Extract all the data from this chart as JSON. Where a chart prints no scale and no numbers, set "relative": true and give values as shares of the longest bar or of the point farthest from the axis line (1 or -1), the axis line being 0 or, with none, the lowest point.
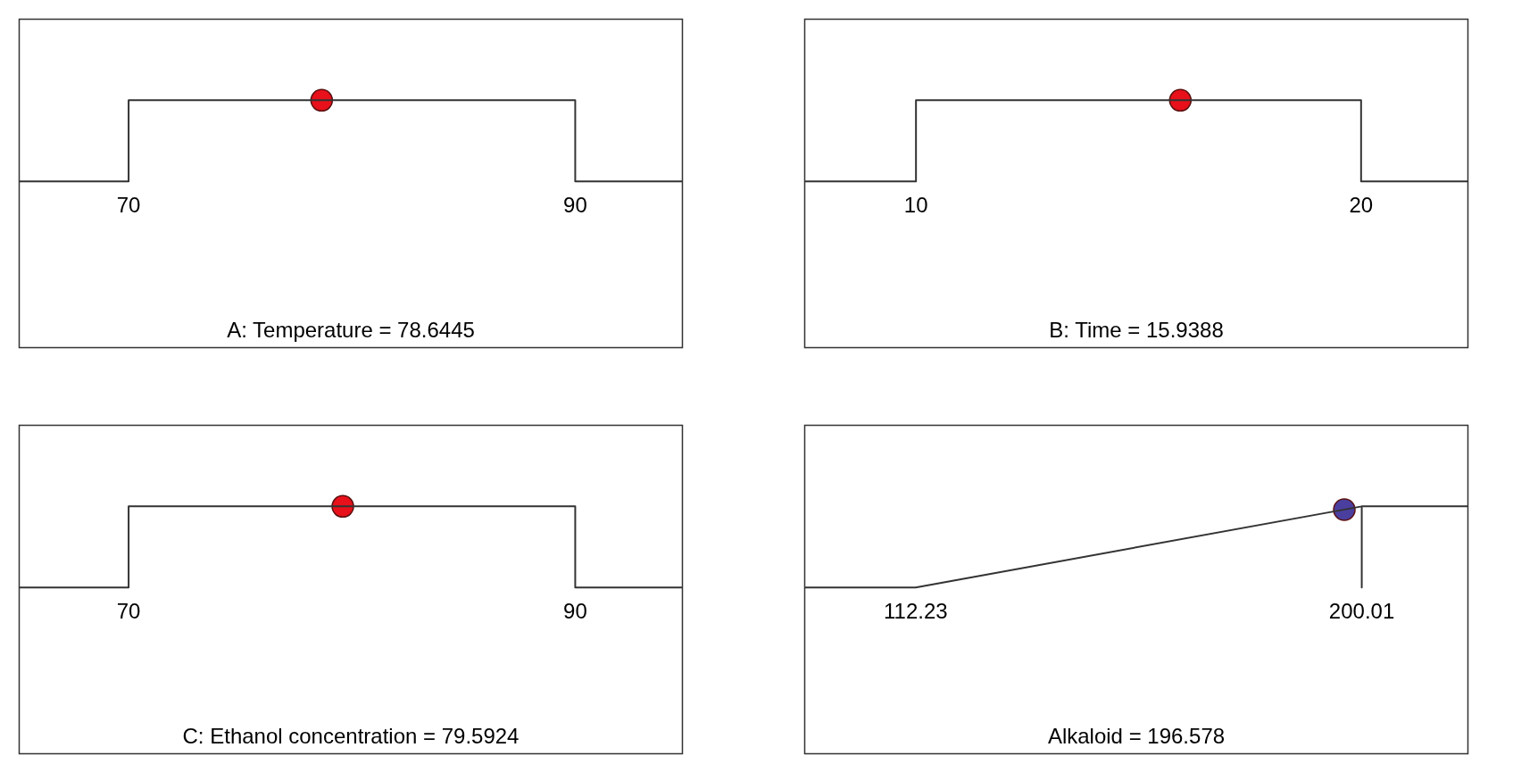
{
  "chart_data": [
    {
      "type": "line",
      "xlabel": "A: Temperature = 78.6445",
      "relative": true,
      "xlim": [
        65.1,
        94.8
      ],
      "xticks": [
        70,
        90
      ],
      "series": [
        {
          "color": "#333333",
          "marker": "none",
          "x": [
            65.1,
            70,
            70,
            90,
            90,
            94.8
          ],
          "values": [
            0,
            0,
            1,
            1,
            0,
            0
          ]
        },
        {
          "type": "scatter",
          "color": "#e8101a",
          "marker": "circle",
          "x": [
            78.6445
          ],
          "values": [
            1
          ]
        }
      ]
    },
    {
      "type": "line",
      "xlabel": "B: Time = 15.9388",
      "relative": true,
      "xlim": [
        7.5,
        22.4
      ],
      "xticks": [
        10,
        20
      ],
      "series": [
        {
          "color": "#333333",
          "marker": "none",
          "x": [
            7.5,
            10,
            10,
            20,
            20,
            22.4
          ],
          "values": [
            0,
            0,
            1,
            1,
            0,
            0
          ]
        },
        {
          "type": "scatter",
          "color": "#e8101a",
          "marker": "circle",
          "x": [
            15.9388
          ],
          "values": [
            1
          ]
        }
      ]
    },
    {
      "type": "line",
      "xlabel": "C: Ethanol concentration = 79.5924",
      "relative": true,
      "xlim": [
        65.1,
        94.8
      ],
      "xticks": [
        70,
        90
      ],
      "series": [
        {
          "color": "#333333",
          "marker": "none",
          "x": [
            65.1,
            70,
            70,
            90,
            90,
            94.8
          ],
          "values": [
            0,
            0,
            1,
            1,
            0,
            0
          ]
        },
        {
          "type": "scatter",
          "color": "#e8101a",
          "marker": "circle",
          "x": [
            79.5924
          ],
          "values": [
            1
          ]
        }
      ]
    },
    {
      "type": "line",
      "xlabel": "Alkaloid = 196.578",
      "relative": true,
      "xlim": [
        90.4,
        220.9
      ],
      "xticks": [
        112.23,
        200.01
      ],
      "series": [
        {
          "color": "#333333",
          "marker": "none",
          "x": [
            90.4,
            112.23,
            200.01,
            200.01,
            200.01,
            220.9
          ],
          "values": [
            0,
            0,
            1,
            0,
            1,
            1
          ]
        },
        {
          "type": "scatter",
          "color": "#4a3f9f",
          "marker": "circle",
          "x": [
            196.578
          ],
          "values": [
            0.96
          ]
        }
      ]
    }
  ]
}
